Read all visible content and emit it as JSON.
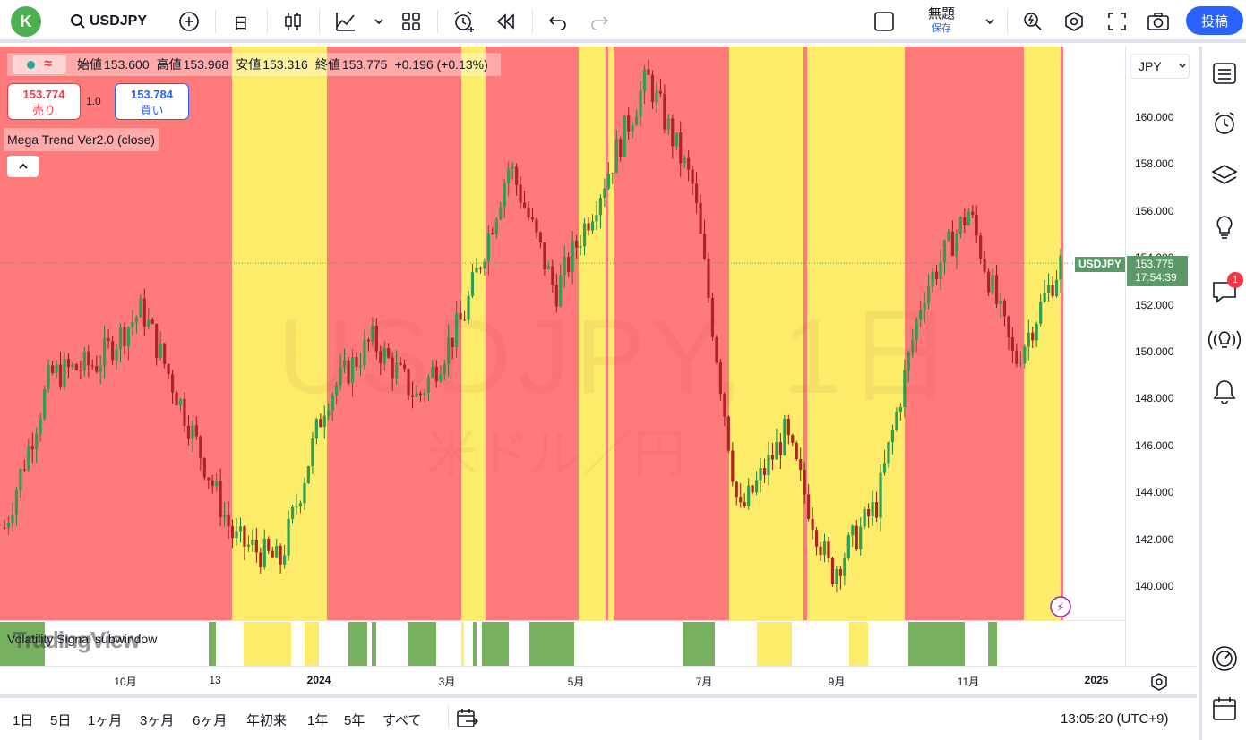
{
  "topbar": {
    "avatar_letter": "K",
    "symbol": "USDJPY",
    "interval": "日",
    "layout_title": "無題",
    "layout_sub": "保存",
    "post_label": "投稿"
  },
  "legend": {
    "open_label": "始値",
    "open": "153.600",
    "high_label": "高値",
    "high": "153.968",
    "low_label": "安値",
    "low": "153.316",
    "close_label": "終値",
    "close": "153.775",
    "change": "+0.196 (+0.13%)"
  },
  "trade": {
    "sell_price": "153.774",
    "sell_label": "売り",
    "qty": "1.0",
    "buy_price": "153.784",
    "buy_label": "買い"
  },
  "indicator_name": "Mega Trend Ver2.0 (close)",
  "subwindow_label": "Volatility Signal subwindow",
  "tv_logo": "TradingView",
  "watermark": {
    "symbol": "USDJPY, 1日",
    "desc": "米ドル／円"
  },
  "currency_button": "JPY",
  "price_axis": [
    "160.000",
    "158.000",
    "156.000",
    "154.000",
    "152.000",
    "150.000",
    "148.000",
    "146.000",
    "144.000",
    "142.000",
    "140.000"
  ],
  "last_price": {
    "symbol": "USDJPY",
    "price": "153.775",
    "countdown": "17:54:39"
  },
  "time_axis": [
    "10月",
    "13",
    "2024",
    "3月",
    "5月",
    "7月",
    "9月",
    "11月",
    "2025"
  ],
  "ranges": [
    "1日",
    "5日",
    "1ヶ月",
    "3ヶ月",
    "6ヶ月",
    "年初来",
    "1年",
    "5年",
    "すべて"
  ],
  "clock": "13:05:20 (UTC+9)",
  "notification_count": "1",
  "colors": {
    "bull": "#26a69a",
    "bear": "#ef5350",
    "red_zone": "#ff7b7b",
    "yellow_zone": "#fdec6a",
    "green_signal": "#77b05e",
    "accent": "#2962ff"
  },
  "chart_data": {
    "type": "candlestick",
    "symbol": "USDJPY",
    "interval": "1D",
    "ylim": [
      138.5,
      162.5
    ],
    "approx_closes": [
      {
        "x": "2023-09",
        "y": 142.5
      },
      {
        "x": "2023-09-25",
        "y": 149.0
      },
      {
        "x": "2023-10",
        "y": 149.5
      },
      {
        "x": "2023-11-13",
        "y": 151.8
      },
      {
        "x": "2023-12-01",
        "y": 147.0
      },
      {
        "x": "2023-12-15",
        "y": 142.0
      },
      {
        "x": "2024-01-01",
        "y": 141.0
      },
      {
        "x": "2024-01-20",
        "y": 148.0
      },
      {
        "x": "2024-02-20",
        "y": 150.5
      },
      {
        "x": "2024-03-15",
        "y": 148.0
      },
      {
        "x": "2024-04-01",
        "y": 151.5
      },
      {
        "x": "2024-04-26",
        "y": 158.0
      },
      {
        "x": "2024-05-03",
        "y": 152.5
      },
      {
        "x": "2024-06-01",
        "y": 157.0
      },
      {
        "x": "2024-07-03",
        "y": 161.7
      },
      {
        "x": "2024-07-20",
        "y": 157.0
      },
      {
        "x": "2024-08-05",
        "y": 143.0
      },
      {
        "x": "2024-08-20",
        "y": 146.5
      },
      {
        "x": "2024-09-16",
        "y": 140.5
      },
      {
        "x": "2024-10-01",
        "y": 143.5
      },
      {
        "x": "2024-11-01",
        "y": 152.5
      },
      {
        "x": "2024-11-15",
        "y": 156.0
      },
      {
        "x": "2024-12-03",
        "y": 149.5
      },
      {
        "x": "2024-12-18",
        "y": 153.775
      }
    ]
  }
}
